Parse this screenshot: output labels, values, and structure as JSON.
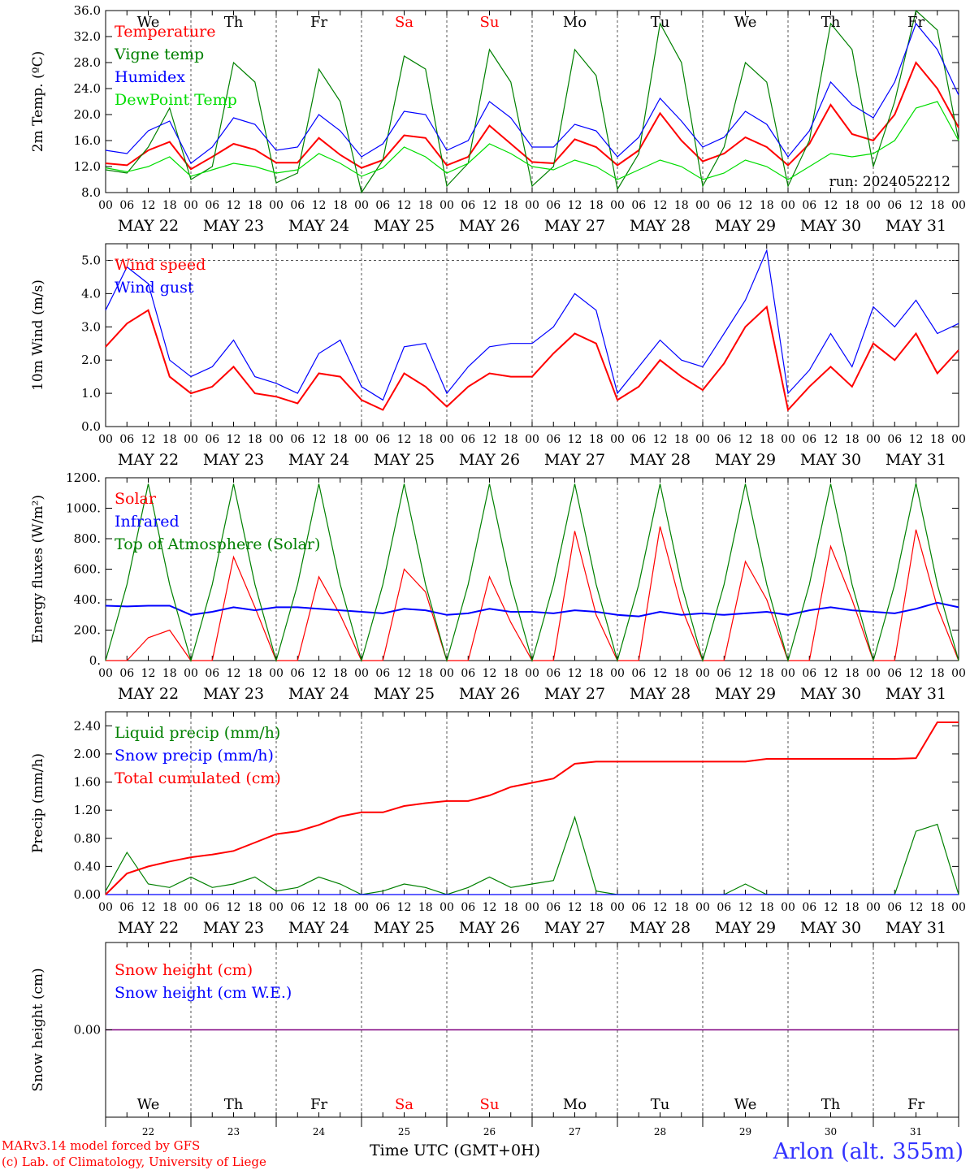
{
  "chart_data": [
    {
      "type": "line",
      "ylabel": "2m Temp. (ºC)",
      "ylim": [
        8,
        36
      ],
      "yticks": [
        "8.0",
        "12.0",
        "16.0",
        "20.0",
        "24.0",
        "28.0",
        "32.0",
        "36.0"
      ],
      "x_hours": [
        0,
        6,
        12,
        18,
        24,
        30,
        36,
        42,
        48,
        54,
        60,
        66,
        72,
        78,
        84,
        90,
        96,
        102,
        108,
        114,
        120,
        126,
        132,
        138,
        144,
        150,
        156,
        162,
        168,
        174,
        180,
        186,
        192,
        198,
        204,
        210,
        216,
        222,
        228,
        234,
        240
      ],
      "series": [
        {
          "name": "Temperature",
          "color": "#ff0000",
          "values": [
            12.5,
            12.2,
            14.5,
            15.8,
            11.6,
            13.5,
            15.5,
            14.6,
            12.6,
            12.6,
            16.4,
            13.8,
            11.8,
            13.0,
            16.8,
            16.4,
            12.2,
            13.5,
            18.3,
            15.5,
            12.7,
            12.5,
            16.2,
            15.0,
            12.2,
            14.5,
            20.2,
            16.0,
            12.8,
            14.0,
            16.5,
            15.0,
            12.2,
            15.5,
            21.5,
            17.0,
            16.0,
            20.0,
            28.0,
            24.0,
            18.0
          ]
        },
        {
          "name": "Vigne temp",
          "color": "#008000",
          "values": [
            11.5,
            11.0,
            15.0,
            21.0,
            10.0,
            12.0,
            28.0,
            25.0,
            9.5,
            11.0,
            27.0,
            22.0,
            8.0,
            13.0,
            29.0,
            27.0,
            9.0,
            12.5,
            30.0,
            25.0,
            9.0,
            12.0,
            30.0,
            26.0,
            8.5,
            14.0,
            34.0,
            28.0,
            9.0,
            15.0,
            28.0,
            25.0,
            9.0,
            16.0,
            34.0,
            30.0,
            12.0,
            22.0,
            37.0,
            33.0,
            16.0
          ]
        },
        {
          "name": "Humidex",
          "color": "#0000ff",
          "values": [
            14.5,
            14.0,
            17.5,
            19.0,
            12.5,
            15.0,
            19.5,
            18.5,
            14.5,
            15.0,
            20.0,
            17.5,
            13.5,
            15.5,
            20.5,
            20.0,
            14.5,
            16.0,
            22.0,
            19.5,
            15.0,
            15.0,
            18.5,
            17.5,
            13.5,
            16.5,
            22.5,
            19.0,
            15.0,
            16.5,
            20.5,
            18.5,
            13.5,
            17.5,
            25.0,
            21.5,
            19.5,
            25.0,
            34.0,
            30.0,
            23.0
          ]
        },
        {
          "name": "DewPoint Temp",
          "color": "#00dd00",
          "values": [
            11.8,
            11.2,
            12.0,
            13.5,
            10.5,
            11.5,
            12.5,
            12.0,
            11.0,
            11.5,
            14.0,
            12.5,
            10.5,
            11.8,
            15.0,
            13.5,
            11.0,
            12.5,
            15.5,
            14.0,
            12.0,
            11.5,
            13.0,
            12.0,
            10.0,
            11.5,
            13.0,
            12.0,
            10.0,
            11.0,
            13.0,
            12.0,
            10.0,
            12.0,
            14.0,
            13.5,
            14.0,
            16.0,
            21.0,
            22.0,
            16.0
          ]
        }
      ],
      "legend": [
        "Temperature",
        "Vigne temp",
        "Humidex",
        "DewPoint Temp"
      ],
      "annotation": "run: 2024052212",
      "day_names": [
        "We",
        "Th",
        "Fr",
        "Sa",
        "Su",
        "Mo",
        "Tu",
        "We",
        "Th",
        "Fr"
      ],
      "weekend_color": "#ff0000"
    },
    {
      "type": "line",
      "ylabel": "10m Wind (m/s)",
      "ylim": [
        0,
        5.5
      ],
      "yticks": [
        "0.0",
        "1.0",
        "2.0",
        "3.0",
        "4.0",
        "5.0"
      ],
      "x_hours": [
        0,
        6,
        12,
        18,
        24,
        30,
        36,
        42,
        48,
        54,
        60,
        66,
        72,
        78,
        84,
        90,
        96,
        102,
        108,
        114,
        120,
        126,
        132,
        138,
        144,
        150,
        156,
        162,
        168,
        174,
        180,
        186,
        192,
        198,
        204,
        210,
        216,
        222,
        228,
        234,
        240
      ],
      "series": [
        {
          "name": "Wind speed",
          "color": "#ff0000",
          "values": [
            2.4,
            3.1,
            3.5,
            1.5,
            1.0,
            1.2,
            1.8,
            1.0,
            0.9,
            0.7,
            1.6,
            1.5,
            0.8,
            0.5,
            1.6,
            1.2,
            0.6,
            1.2,
            1.6,
            1.5,
            1.5,
            2.2,
            2.8,
            2.5,
            0.8,
            1.2,
            2.0,
            1.5,
            1.1,
            1.9,
            3.0,
            3.6,
            0.5,
            1.2,
            1.8,
            1.2,
            2.5,
            2.0,
            2.8,
            1.6,
            2.3
          ]
        },
        {
          "name": "Wind gust",
          "color": "#0000ff",
          "values": [
            3.5,
            4.8,
            4.3,
            2.0,
            1.5,
            1.8,
            2.6,
            1.5,
            1.3,
            1.0,
            2.2,
            2.6,
            1.2,
            0.8,
            2.4,
            2.5,
            1.0,
            1.8,
            2.4,
            2.5,
            2.5,
            3.0,
            4.0,
            3.5,
            1.0,
            1.8,
            2.6,
            2.0,
            1.8,
            2.8,
            3.8,
            5.3,
            1.0,
            1.7,
            2.8,
            1.8,
            3.6,
            3.0,
            3.8,
            2.8,
            3.1
          ]
        }
      ],
      "legend": [
        "Wind speed",
        "Wind gust"
      ],
      "reference_line": 5.0
    },
    {
      "type": "line",
      "ylabel": "Energy fluxes (W/m²)",
      "ylim": [
        0,
        1200
      ],
      "yticks": [
        "0.",
        "200.",
        "400.",
        "600.",
        "800.",
        "1000.",
        "1200."
      ],
      "x_hours": [
        0,
        6,
        12,
        18,
        24,
        30,
        36,
        42,
        48,
        54,
        60,
        66,
        72,
        78,
        84,
        90,
        96,
        102,
        108,
        114,
        120,
        126,
        132,
        138,
        144,
        150,
        156,
        162,
        168,
        174,
        180,
        186,
        192,
        198,
        204,
        210,
        216,
        222,
        228,
        234,
        240
      ],
      "series": [
        {
          "name": "Solar",
          "color": "#ff0000",
          "values": [
            0,
            0,
            150,
            200,
            0,
            0,
            680,
            350,
            0,
            0,
            550,
            300,
            0,
            0,
            600,
            450,
            0,
            0,
            550,
            250,
            0,
            0,
            850,
            300,
            0,
            0,
            880,
            350,
            0,
            0,
            650,
            400,
            0,
            0,
            750,
            400,
            0,
            0,
            860,
            350,
            0
          ]
        },
        {
          "name": "Infrared",
          "color": "#0000ff",
          "values": [
            360,
            355,
            360,
            360,
            300,
            320,
            350,
            330,
            350,
            350,
            340,
            330,
            320,
            310,
            340,
            330,
            300,
            310,
            340,
            320,
            320,
            310,
            330,
            320,
            300,
            290,
            320,
            300,
            310,
            300,
            310,
            320,
            300,
            330,
            350,
            330,
            320,
            310,
            340,
            380,
            350
          ]
        },
        {
          "name": "Top of Atmosphere (Solar)",
          "color": "#008000",
          "values": [
            0,
            500,
            1160,
            500,
            0,
            500,
            1160,
            500,
            0,
            500,
            1160,
            500,
            0,
            500,
            1160,
            500,
            0,
            500,
            1160,
            500,
            0,
            500,
            1160,
            500,
            0,
            500,
            1160,
            500,
            0,
            500,
            1160,
            500,
            0,
            500,
            1160,
            500,
            0,
            500,
            1165,
            500,
            0
          ]
        }
      ],
      "legend": [
        "Solar",
        "Infrared",
        "Top of Atmosphere (Solar)"
      ]
    },
    {
      "type": "line",
      "ylabel": "Precip (mm/h)",
      "ylim": [
        0,
        2.6
      ],
      "yticks": [
        "0.00",
        "0.40",
        "0.80",
        "1.20",
        "1.60",
        "2.00",
        "2.40"
      ],
      "x_hours": [
        0,
        6,
        12,
        18,
        24,
        30,
        36,
        42,
        48,
        54,
        60,
        66,
        72,
        78,
        84,
        90,
        96,
        102,
        108,
        114,
        120,
        126,
        132,
        138,
        144,
        150,
        156,
        162,
        168,
        174,
        180,
        186,
        192,
        198,
        204,
        210,
        216,
        222,
        228,
        234,
        240
      ],
      "series": [
        {
          "name": "Liquid precip (mm/h)",
          "color": "#008000",
          "values": [
            0.05,
            0.6,
            0.15,
            0.1,
            0.25,
            0.1,
            0.15,
            0.25,
            0.05,
            0.1,
            0.25,
            0.15,
            0.0,
            0.05,
            0.15,
            0.1,
            0.0,
            0.1,
            0.25,
            0.1,
            0.15,
            0.2,
            1.1,
            0.05,
            0.0,
            0.0,
            0.0,
            0.0,
            0.0,
            0.0,
            0.15,
            0.0,
            0.0,
            0.0,
            0.0,
            0.0,
            0.0,
            0.0,
            0.9,
            1.0,
            0.0
          ]
        },
        {
          "name": "Snow precip (mm/h)",
          "color": "#0000ff",
          "values": [
            0,
            0,
            0,
            0,
            0,
            0,
            0,
            0,
            0,
            0,
            0,
            0,
            0,
            0,
            0,
            0,
            0,
            0,
            0,
            0,
            0,
            0,
            0,
            0,
            0,
            0,
            0,
            0,
            0,
            0,
            0,
            0,
            0,
            0,
            0,
            0,
            0,
            0,
            0,
            0,
            0
          ]
        },
        {
          "name": "Total cumulated (cm)",
          "color": "#ff0000",
          "values": [
            0.0,
            0.3,
            0.4,
            0.47,
            0.53,
            0.57,
            0.62,
            0.74,
            0.86,
            0.9,
            0.99,
            1.11,
            1.17,
            1.17,
            1.26,
            1.3,
            1.33,
            1.33,
            1.41,
            1.53,
            1.59,
            1.65,
            1.86,
            1.89,
            1.89,
            1.89,
            1.89,
            1.89,
            1.89,
            1.89,
            1.89,
            1.93,
            1.93,
            1.93,
            1.93,
            1.93,
            1.93,
            1.93,
            1.94,
            2.45,
            2.45
          ]
        }
      ],
      "legend": [
        "Liquid precip (mm/h)",
        "Snow precip (mm/h)",
        "Total cumulated (cm)"
      ]
    },
    {
      "type": "line",
      "ylabel": "Snow height (cm)",
      "yticks": [
        "0.00"
      ],
      "series": [
        {
          "name": "Snow height (cm)",
          "color": "#ff0000",
          "values": [
            0,
            0
          ]
        },
        {
          "name": "Snow height (cm W.E.)",
          "color": "#0000ff",
          "values": [
            0,
            0
          ]
        }
      ],
      "legend": [
        "Snow height (cm)",
        "Snow height (cm W.E.)"
      ],
      "day_names": [
        "We",
        "Th",
        "Fr",
        "Sa",
        "Su",
        "Mo",
        "Tu",
        "We",
        "Th",
        "Fr"
      ],
      "day_numbers": [
        "22",
        "23",
        "24",
        "25",
        "26",
        "27",
        "28",
        "29",
        "30",
        "31"
      ]
    }
  ],
  "x_axis": {
    "hour_ticks": [
      "00",
      "06",
      "12",
      "18"
    ],
    "end_tick": "00",
    "dates": [
      "MAY 22",
      "MAY 23",
      "MAY 24",
      "MAY 25",
      "MAY 26",
      "MAY 27",
      "MAY 28",
      "MAY 29",
      "MAY 30",
      "MAY 31"
    ],
    "title": "Time UTC (GMT+0H)"
  },
  "footer": {
    "model": "MARv3.14 model forced by GFS",
    "credit": "(c) Lab. of Climatology, University of Liege",
    "station": "Arlon (alt. 355m)"
  }
}
